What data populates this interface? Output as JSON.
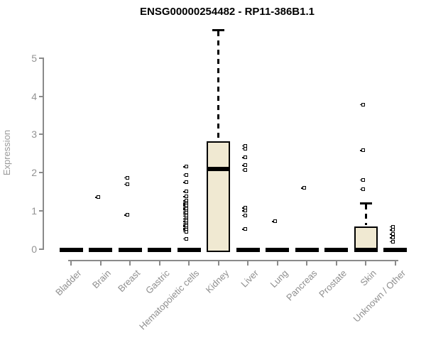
{
  "title": "ENSG00000254482 - RP11-386B1.1",
  "chart_data": {
    "type": "boxplot",
    "title": "ENSG00000254482 - RP11-386B1.1",
    "xlabel": "",
    "ylabel": "Expression",
    "ylim": [
      0,
      5.9
    ],
    "yticks": [
      0,
      1,
      2,
      3,
      4,
      5
    ],
    "grid": "off",
    "legend": "none",
    "box_fill_color": "#F0E9D2",
    "box_border_color": "#000000",
    "axis_color": "#8a8a8a",
    "categories": [
      "Bladder",
      "Brain",
      "Breast",
      "Gastric",
      "Hematopoietic cells",
      "Kidney",
      "Liver",
      "Lung",
      "Pancreas",
      "Prostate",
      "Skin",
      "Unknown / Other"
    ],
    "series": [
      {
        "name": "Bladder",
        "q1": 0,
        "median": 0,
        "q3": 0,
        "whisker_low": 0,
        "whisker_high": 0,
        "outliers": []
      },
      {
        "name": "Brain",
        "q1": 0,
        "median": 0,
        "q3": 0,
        "whisker_low": 0,
        "whisker_high": 0,
        "outliers": [
          1.35
        ]
      },
      {
        "name": "Breast",
        "q1": 0,
        "median": 0,
        "q3": 0,
        "whisker_low": 0,
        "whisker_high": 0,
        "outliers": [
          1.86,
          1.69,
          0.88
        ]
      },
      {
        "name": "Gastric",
        "q1": 0,
        "median": 0,
        "q3": 0,
        "whisker_low": 0,
        "whisker_high": 0,
        "outliers": []
      },
      {
        "name": "Hematopoietic cells",
        "q1": 0,
        "median": 0,
        "q3": 0,
        "whisker_low": 0,
        "whisker_high": 0,
        "outliers": [
          2.15,
          1.93,
          1.74,
          1.49,
          1.36,
          1.25,
          1.2,
          1.16,
          1.12,
          1.07,
          1.03,
          0.98,
          0.94,
          0.89,
          0.85,
          0.8,
          0.76,
          0.71,
          0.67,
          0.62,
          0.58,
          0.53,
          0.49,
          0.44,
          0.26
        ]
      },
      {
        "name": "Kidney",
        "q1": 0,
        "median": 2.12,
        "q3": 2.83,
        "whisker_low": 0,
        "whisker_high": 5.75,
        "outliers": []
      },
      {
        "name": "Liver",
        "q1": 0,
        "median": 0,
        "q3": 0,
        "whisker_low": 0,
        "whisker_high": 0,
        "outliers": [
          2.7,
          2.62,
          2.39,
          2.18,
          2.06,
          1.07,
          0.99,
          0.87,
          0.51
        ]
      },
      {
        "name": "Lung",
        "q1": 0,
        "median": 0,
        "q3": 0,
        "whisker_low": 0,
        "whisker_high": 0,
        "outliers": [
          0.71
        ]
      },
      {
        "name": "Pancreas",
        "q1": 0,
        "median": 0,
        "q3": 0,
        "whisker_low": 0,
        "whisker_high": 0,
        "outliers": [
          1.59
        ]
      },
      {
        "name": "Prostate",
        "q1": 0,
        "median": 0,
        "q3": 0,
        "whisker_low": 0,
        "whisker_high": 0,
        "outliers": []
      },
      {
        "name": "Skin",
        "q1": 0,
        "median": 0,
        "q3": 0.58,
        "whisker_low": 0,
        "whisker_high": 1.2,
        "outliers": [
          3.78,
          2.57,
          1.8,
          1.56
        ]
      },
      {
        "name": "Unknown / Other",
        "q1": 0,
        "median": 0,
        "q3": 0,
        "whisker_low": 0,
        "whisker_high": 0,
        "outliers": [
          0.57,
          0.49,
          0.38,
          0.28,
          0.18
        ]
      }
    ]
  }
}
